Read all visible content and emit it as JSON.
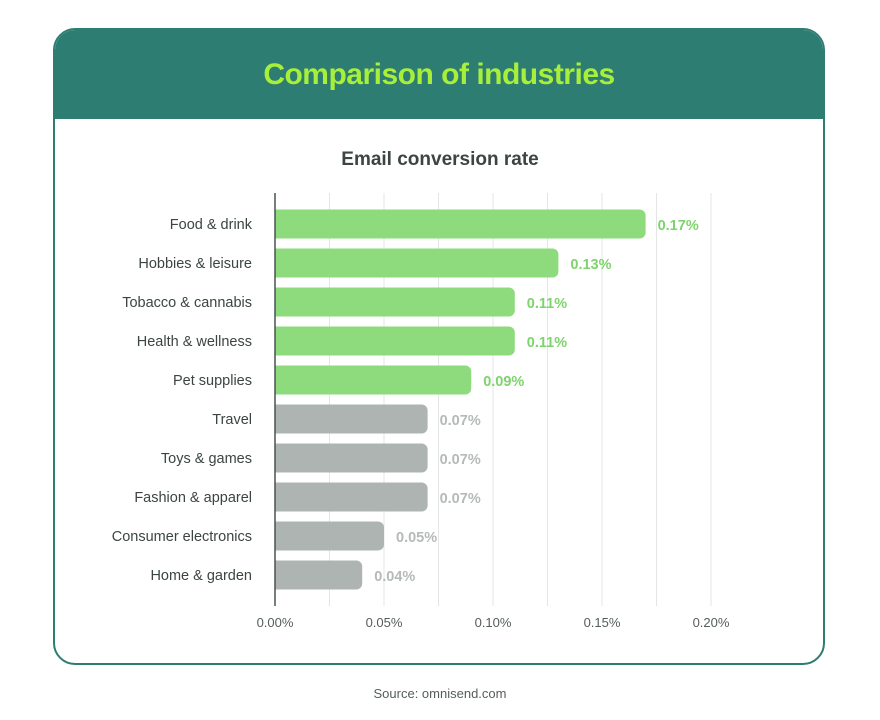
{
  "header": {
    "title": "Comparison of industries"
  },
  "footer": {
    "source": "Source: omnisend.com"
  },
  "colors": {
    "header_bg": "#2e7d72",
    "title": "#a8ef3a",
    "highlight_bar": "#8ddb7c",
    "muted_bar": "#aeb4b2",
    "highlight_label": "#7ed46c",
    "muted_label": "#b5bab9"
  },
  "chart_data": {
    "type": "bar",
    "orientation": "horizontal",
    "title": "Email conversion rate",
    "xlabel": "",
    "ylabel": "",
    "categories": [
      "Food & drink",
      "Hobbies & leisure",
      "Tobacco & cannabis",
      "Health & wellness",
      "Pet supplies",
      "Travel",
      "Toys & games",
      "Fashion & apparel",
      "Consumer electronics",
      "Home & garden"
    ],
    "values": [
      0.17,
      0.13,
      0.11,
      0.11,
      0.09,
      0.07,
      0.07,
      0.07,
      0.05,
      0.04
    ],
    "value_labels": [
      "0.17%",
      "0.13%",
      "0.11%",
      "0.11%",
      "0.09%",
      "0.07%",
      "0.07%",
      "0.07%",
      "0.05%",
      "0.04%"
    ],
    "highlighted": [
      true,
      true,
      true,
      true,
      true,
      false,
      false,
      false,
      false,
      false
    ],
    "xlim": [
      0,
      0.2
    ],
    "xticks": [
      0,
      0.05,
      0.1,
      0.15,
      0.2
    ],
    "xtick_labels": [
      "0.00%",
      "0.05%",
      "0.10%",
      "0.15%",
      "0.20%"
    ],
    "grid": true
  }
}
